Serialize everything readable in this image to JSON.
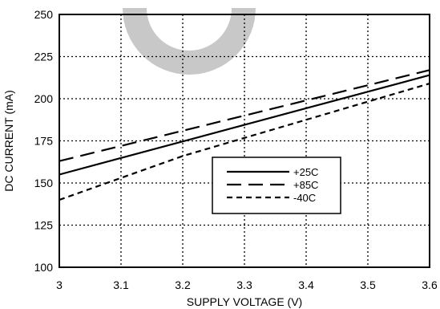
{
  "chart_data": {
    "type": "line",
    "title": "",
    "xlabel": "SUPPLY VOLTAGE (V)",
    "ylabel": "DC CURRENT (mA)",
    "xlim": [
      3,
      3.6
    ],
    "ylim": [
      100,
      250
    ],
    "x_ticks": [
      3,
      3.1,
      3.2,
      3.3,
      3.4,
      3.5,
      3.6
    ],
    "x_tick_labels": [
      "3",
      "3.1",
      "3.2",
      "3.3",
      "3.4",
      "3.5",
      "3.6"
    ],
    "y_ticks": [
      100,
      125,
      150,
      175,
      200,
      225,
      250
    ],
    "y_tick_labels": [
      "100",
      "125",
      "150",
      "175",
      "200",
      "225",
      "250"
    ],
    "grid": true,
    "grid_style": "dotted",
    "legend_position": "center-right",
    "series": [
      {
        "name": "+25C",
        "line_style": "solid",
        "x": [
          3,
          3.6
        ],
        "y": [
          155,
          214
        ]
      },
      {
        "name": "+85C",
        "line_style": "long-dash",
        "x": [
          3,
          3.6
        ],
        "y": [
          163,
          217
        ]
      },
      {
        "name": "-40C",
        "line_style": "short-dash",
        "x": [
          3,
          3.2,
          3.6
        ],
        "y": [
          140,
          166,
          209
        ]
      }
    ]
  },
  "colors": {
    "line": "#000000",
    "watermark": "#c8c8c8"
  },
  "watermark_icon": "partial-ring-watermark"
}
